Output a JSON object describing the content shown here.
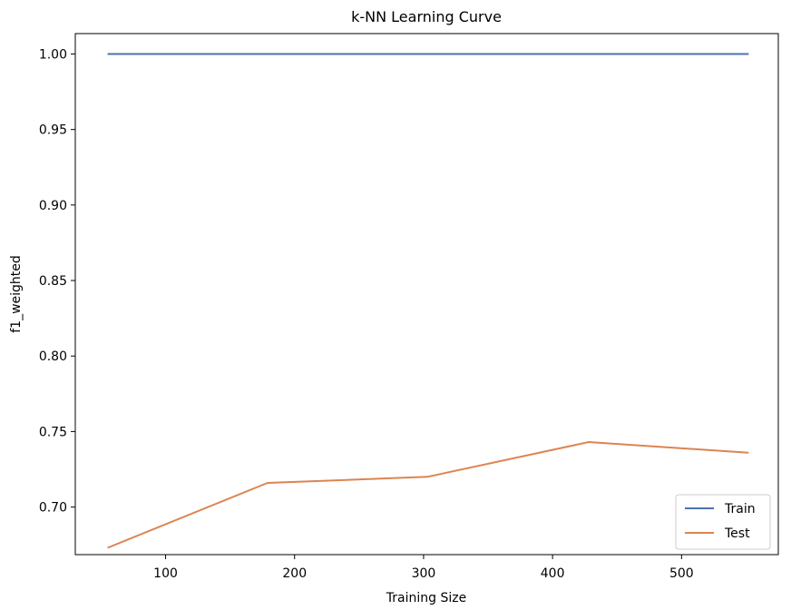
{
  "chart_data": {
    "type": "line",
    "title": "k-NN Learning Curve",
    "xlabel": "Training Size",
    "ylabel": "f1_weighted",
    "xlim": [
      30,
      575
    ],
    "ylim": [
      0.6685,
      1.0135
    ],
    "xticks": [
      100,
      200,
      300,
      400,
      500
    ],
    "xtick_labels": [
      "100",
      "200",
      "300",
      "400",
      "500"
    ],
    "yticks": [
      0.7,
      0.75,
      0.8,
      0.85,
      0.9,
      0.95,
      1.0
    ],
    "ytick_labels": [
      "0.70",
      "0.75",
      "0.80",
      "0.85",
      "0.90",
      "0.95",
      "1.00"
    ],
    "grid": false,
    "legend_position": "lower-right",
    "x": [
      55,
      179,
      303,
      428,
      552
    ],
    "series": [
      {
        "name": "Train",
        "color": "#4c72b0",
        "values": [
          1.0,
          1.0,
          1.0,
          1.0,
          1.0
        ]
      },
      {
        "name": "Test",
        "color": "#dd8452",
        "values": [
          0.673,
          0.716,
          0.72,
          0.743,
          0.736
        ]
      }
    ]
  }
}
